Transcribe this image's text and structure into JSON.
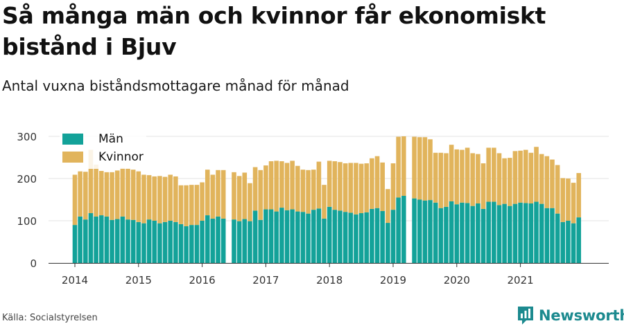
{
  "header": {
    "title": "Så många män och kvinnor får ekonomiskt bistånd i Bjuv",
    "subtitle": "Antal vuxna biståndsmottagare månad för månad"
  },
  "footer": {
    "source": "Källa: Socialstyrelsen",
    "brand": "Newsworthy"
  },
  "colors": {
    "man": "#13a299",
    "kvinnor": "#e1b45c",
    "grid": "#e3e3e3",
    "axis": "#333333",
    "brand": "#1c8a8f"
  },
  "chart_data": {
    "type": "bar",
    "stacked": true,
    "grid": true,
    "legend_position": "top-left",
    "ylim": [
      0,
      300
    ],
    "yticks": [
      0,
      100,
      200,
      300
    ],
    "x_tick_labels": [
      "2014",
      "2015",
      "2016",
      "2017",
      "2018",
      "2019",
      "2020",
      "2021"
    ],
    "x_start": "2014-01",
    "x_end": "2021-12",
    "series": [
      {
        "name": "Män",
        "values": [
          90,
          110,
          103,
          118,
          110,
          113,
          110,
          102,
          104,
          110,
          103,
          102,
          97,
          94,
          103,
          100,
          94,
          97,
          100,
          97,
          92,
          87,
          90,
          90,
          100,
          113,
          105,
          110,
          105,
          null,
          103,
          99,
          104,
          99,
          124,
          102,
          127,
          127,
          122,
          131,
          125,
          127,
          122,
          121,
          117,
          126,
          129,
          105,
          133,
          126,
          124,
          121,
          119,
          115,
          118,
          120,
          128,
          130,
          123,
          95,
          126,
          155,
          159,
          null,
          153,
          150,
          148,
          149,
          143,
          130,
          133,
          146,
          139,
          143,
          142,
          135,
          141,
          128,
          145,
          145,
          137,
          140,
          135,
          140,
          143,
          142,
          141,
          145,
          140,
          130,
          130,
          117,
          97,
          100,
          94,
          108
        ]
      },
      {
        "name": "Kvinnor",
        "values": [
          119,
          107,
          113,
          150,
          123,
          105,
          105,
          113,
          115,
          115,
          121,
          119,
          120,
          115,
          105,
          105,
          112,
          107,
          109,
          108,
          92,
          97,
          95,
          95,
          91,
          108,
          104,
          110,
          115,
          null,
          112,
          107,
          110,
          90,
          103,
          118,
          104,
          114,
          120,
          110,
          112,
          115,
          108,
          100,
          103,
          95,
          111,
          80,
          109,
          115,
          115,
          115,
          118,
          122,
          117,
          116,
          120,
          123,
          115,
          80,
          110,
          144,
          141,
          null,
          146,
          148,
          150,
          144,
          118,
          131,
          127,
          134,
          130,
          125,
          131,
          125,
          117,
          108,
          128,
          128,
          123,
          108,
          114,
          125,
          123,
          126,
          120,
          130,
          118,
          123,
          115,
          115,
          104,
          100,
          96,
          105
        ]
      }
    ]
  }
}
